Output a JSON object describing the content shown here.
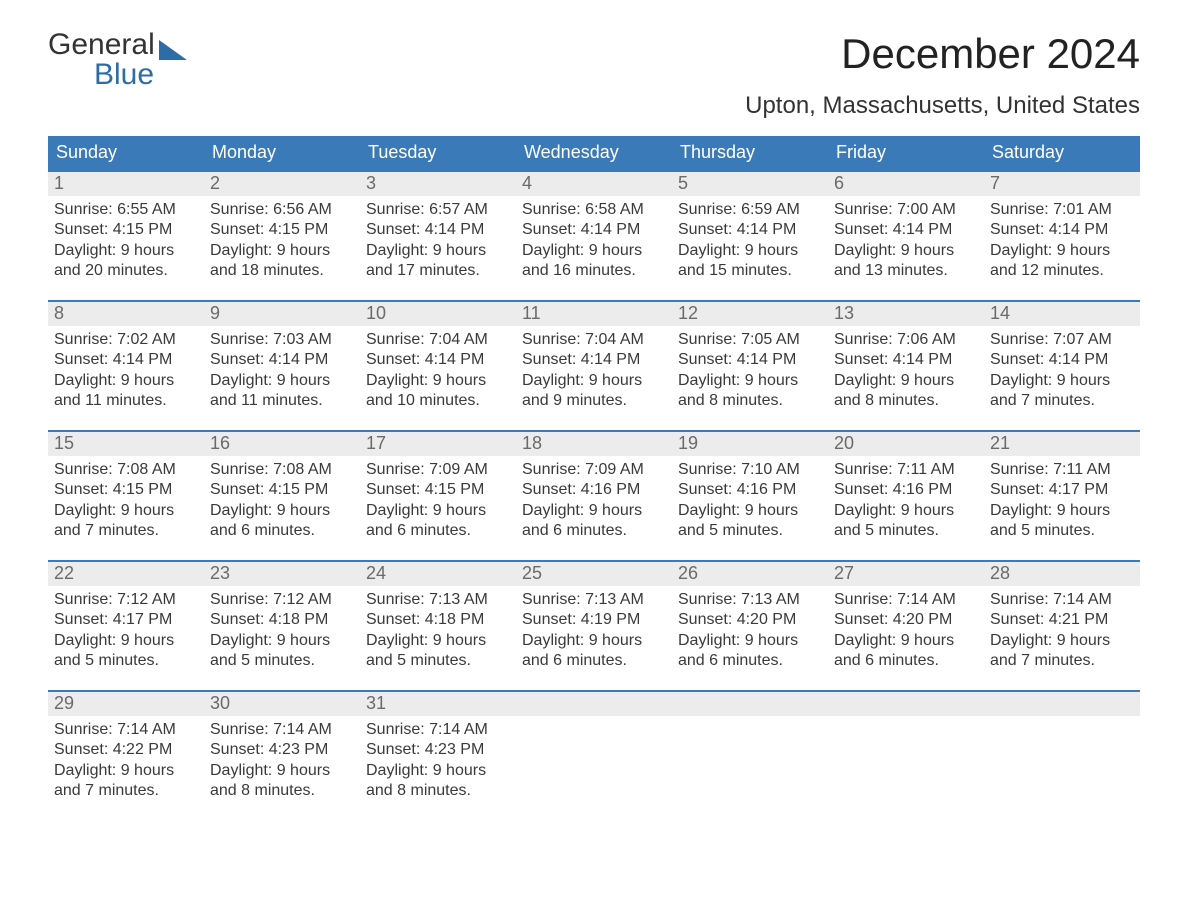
{
  "logo": {
    "top": "General",
    "bottom": "Blue",
    "tri_color": "#2e6ca8"
  },
  "header": {
    "month_title": "December 2024",
    "location": "Upton, Massachusetts, United States"
  },
  "colors": {
    "header_bg": "#3a7ab8",
    "header_text": "#ffffff",
    "row_divider": "#3a7ab8",
    "daynum_bg": "#ececec",
    "daynum_text": "#6a6a6a",
    "body_text": "#3a3a3a",
    "page_bg": "#ffffff"
  },
  "weekdays": [
    "Sunday",
    "Monday",
    "Tuesday",
    "Wednesday",
    "Thursday",
    "Friday",
    "Saturday"
  ],
  "labels": {
    "sunrise": "Sunrise:",
    "sunset": "Sunset:",
    "daylight_prefix": "Daylight:"
  },
  "weeks": [
    [
      {
        "n": "1",
        "sunrise": "6:55 AM",
        "sunset": "4:15 PM",
        "daylight": "9 hours and 20 minutes."
      },
      {
        "n": "2",
        "sunrise": "6:56 AM",
        "sunset": "4:15 PM",
        "daylight": "9 hours and 18 minutes."
      },
      {
        "n": "3",
        "sunrise": "6:57 AM",
        "sunset": "4:14 PM",
        "daylight": "9 hours and 17 minutes."
      },
      {
        "n": "4",
        "sunrise": "6:58 AM",
        "sunset": "4:14 PM",
        "daylight": "9 hours and 16 minutes."
      },
      {
        "n": "5",
        "sunrise": "6:59 AM",
        "sunset": "4:14 PM",
        "daylight": "9 hours and 15 minutes."
      },
      {
        "n": "6",
        "sunrise": "7:00 AM",
        "sunset": "4:14 PM",
        "daylight": "9 hours and 13 minutes."
      },
      {
        "n": "7",
        "sunrise": "7:01 AM",
        "sunset": "4:14 PM",
        "daylight": "9 hours and 12 minutes."
      }
    ],
    [
      {
        "n": "8",
        "sunrise": "7:02 AM",
        "sunset": "4:14 PM",
        "daylight": "9 hours and 11 minutes."
      },
      {
        "n": "9",
        "sunrise": "7:03 AM",
        "sunset": "4:14 PM",
        "daylight": "9 hours and 11 minutes."
      },
      {
        "n": "10",
        "sunrise": "7:04 AM",
        "sunset": "4:14 PM",
        "daylight": "9 hours and 10 minutes."
      },
      {
        "n": "11",
        "sunrise": "7:04 AM",
        "sunset": "4:14 PM",
        "daylight": "9 hours and 9 minutes."
      },
      {
        "n": "12",
        "sunrise": "7:05 AM",
        "sunset": "4:14 PM",
        "daylight": "9 hours and 8 minutes."
      },
      {
        "n": "13",
        "sunrise": "7:06 AM",
        "sunset": "4:14 PM",
        "daylight": "9 hours and 8 minutes."
      },
      {
        "n": "14",
        "sunrise": "7:07 AM",
        "sunset": "4:14 PM",
        "daylight": "9 hours and 7 minutes."
      }
    ],
    [
      {
        "n": "15",
        "sunrise": "7:08 AM",
        "sunset": "4:15 PM",
        "daylight": "9 hours and 7 minutes."
      },
      {
        "n": "16",
        "sunrise": "7:08 AM",
        "sunset": "4:15 PM",
        "daylight": "9 hours and 6 minutes."
      },
      {
        "n": "17",
        "sunrise": "7:09 AM",
        "sunset": "4:15 PM",
        "daylight": "9 hours and 6 minutes."
      },
      {
        "n": "18",
        "sunrise": "7:09 AM",
        "sunset": "4:16 PM",
        "daylight": "9 hours and 6 minutes."
      },
      {
        "n": "19",
        "sunrise": "7:10 AM",
        "sunset": "4:16 PM",
        "daylight": "9 hours and 5 minutes."
      },
      {
        "n": "20",
        "sunrise": "7:11 AM",
        "sunset": "4:16 PM",
        "daylight": "9 hours and 5 minutes."
      },
      {
        "n": "21",
        "sunrise": "7:11 AM",
        "sunset": "4:17 PM",
        "daylight": "9 hours and 5 minutes."
      }
    ],
    [
      {
        "n": "22",
        "sunrise": "7:12 AM",
        "sunset": "4:17 PM",
        "daylight": "9 hours and 5 minutes."
      },
      {
        "n": "23",
        "sunrise": "7:12 AM",
        "sunset": "4:18 PM",
        "daylight": "9 hours and 5 minutes."
      },
      {
        "n": "24",
        "sunrise": "7:13 AM",
        "sunset": "4:18 PM",
        "daylight": "9 hours and 5 minutes."
      },
      {
        "n": "25",
        "sunrise": "7:13 AM",
        "sunset": "4:19 PM",
        "daylight": "9 hours and 6 minutes."
      },
      {
        "n": "26",
        "sunrise": "7:13 AM",
        "sunset": "4:20 PM",
        "daylight": "9 hours and 6 minutes."
      },
      {
        "n": "27",
        "sunrise": "7:14 AM",
        "sunset": "4:20 PM",
        "daylight": "9 hours and 6 minutes."
      },
      {
        "n": "28",
        "sunrise": "7:14 AM",
        "sunset": "4:21 PM",
        "daylight": "9 hours and 7 minutes."
      }
    ],
    [
      {
        "n": "29",
        "sunrise": "7:14 AM",
        "sunset": "4:22 PM",
        "daylight": "9 hours and 7 minutes."
      },
      {
        "n": "30",
        "sunrise": "7:14 AM",
        "sunset": "4:23 PM",
        "daylight": "9 hours and 8 minutes."
      },
      {
        "n": "31",
        "sunrise": "7:14 AM",
        "sunset": "4:23 PM",
        "daylight": "9 hours and 8 minutes."
      },
      {
        "empty": true
      },
      {
        "empty": true
      },
      {
        "empty": true
      },
      {
        "empty": true
      }
    ]
  ]
}
